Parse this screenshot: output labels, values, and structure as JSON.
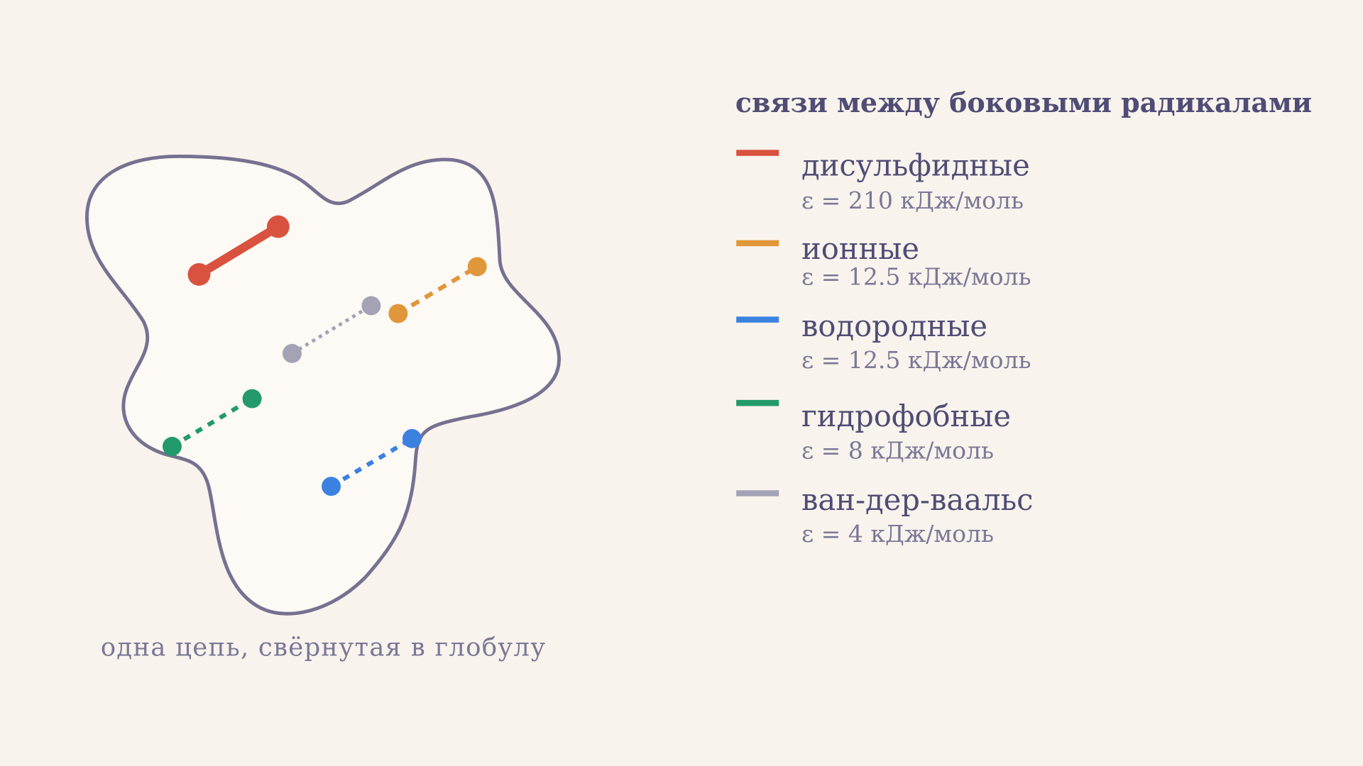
{
  "title": "связи между боковыми радикалами",
  "caption": "одна цепь, свёрнутая в глобулу",
  "legend": [
    {
      "label": "дисульфидные",
      "energy": "ε = 210 кДж/моль"
    },
    {
      "label": "ионные",
      "energy": "ε = 12.5 кДж/моль"
    },
    {
      "label": "водородные",
      "energy": "ε = 12.5 кДж/моль"
    },
    {
      "label": "гидрофобные",
      "energy": "ε = 8 кДж/моль"
    },
    {
      "label": "ван-дер-ваальс",
      "energy": "ε = 4 кДж/моль"
    }
  ]
}
